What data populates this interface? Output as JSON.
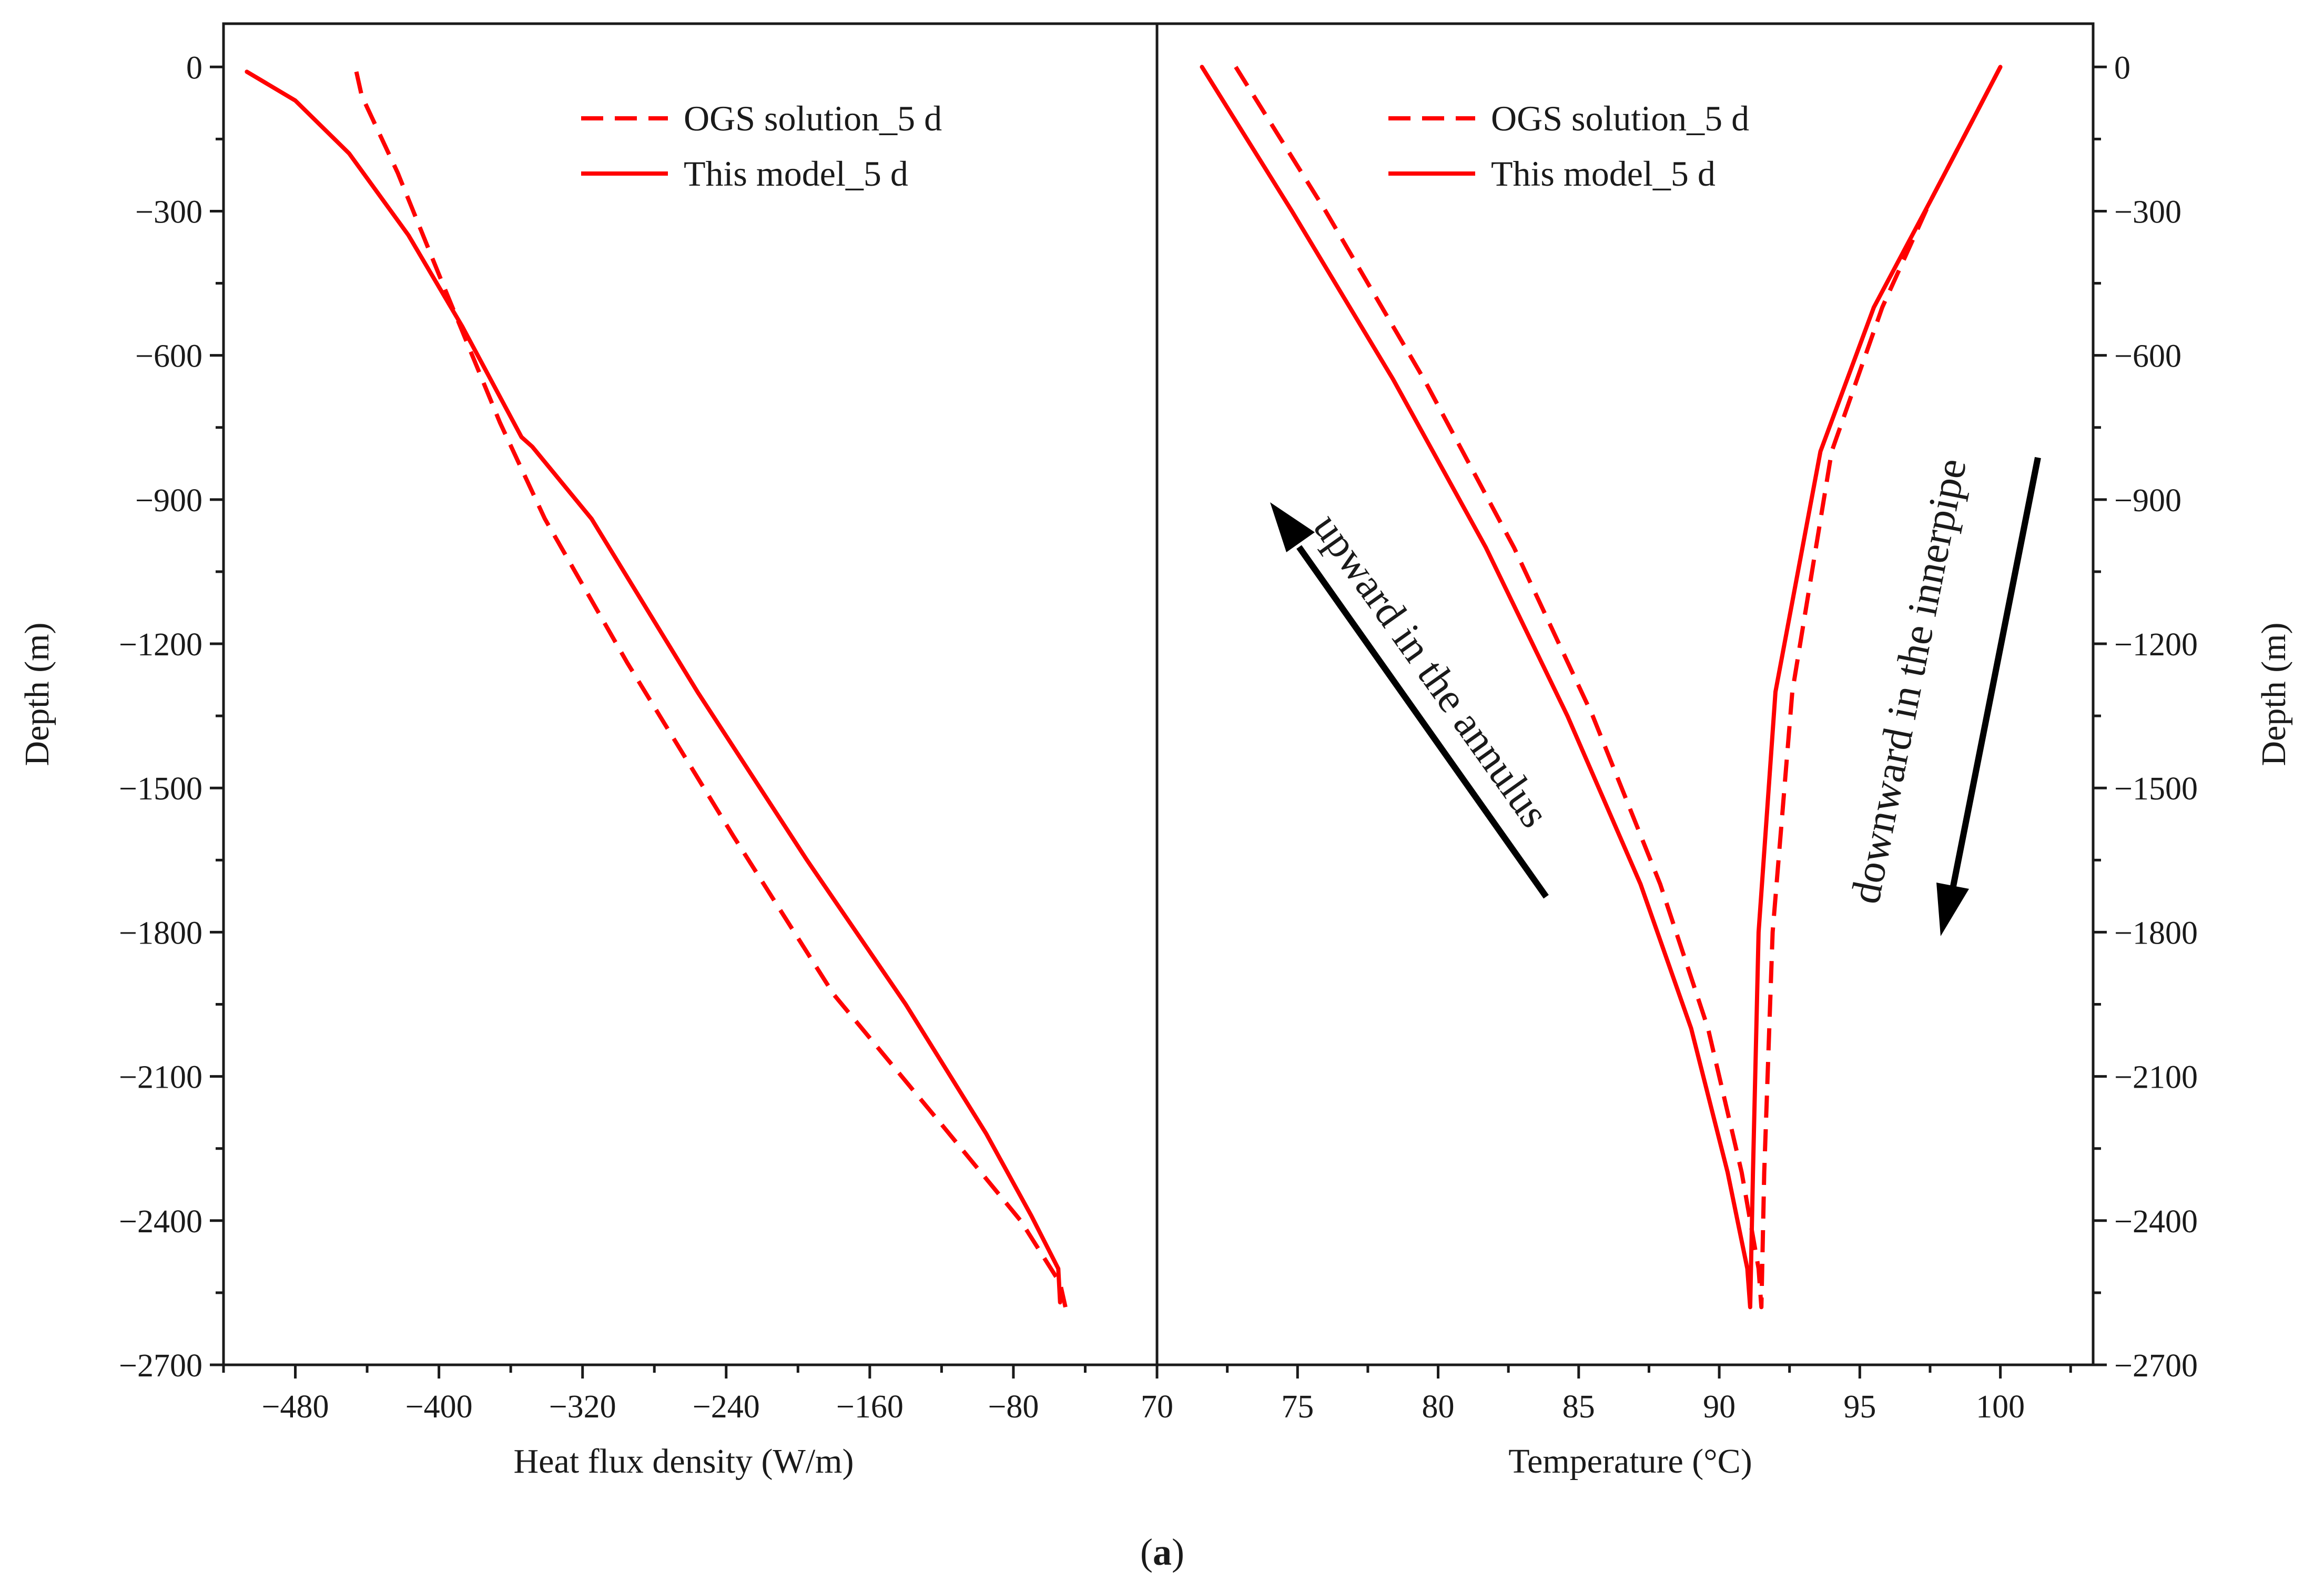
{
  "caption": {
    "open": "(",
    "letter": "a",
    "close": ")"
  },
  "colors": {
    "series": "#ff0000",
    "axis": "#1a1a1a",
    "arrow": "#000000"
  },
  "chart_data": [
    {
      "type": "line",
      "panel": "left",
      "xlabel": "Heat flux density (W/m)",
      "ylabel": "Depth (m)",
      "xlim": [
        -520,
        0
      ],
      "ylim": [
        -2700,
        90
      ],
      "xticks": [
        -480,
        -400,
        -320,
        -240,
        -160,
        -80
      ],
      "xtick_labels": [
        "−480",
        "−400",
        "−320",
        "−240",
        "−160",
        "−80"
      ],
      "yticks": [
        0,
        -300,
        -600,
        -900,
        -1200,
        -1500,
        -1800,
        -2100,
        -2400,
        -2700
      ],
      "ytick_labels": [
        "0",
        "−300",
        "−600",
        "−900",
        "−1200",
        "−1500",
        "−1800",
        "−2100",
        "−2400",
        "−2700"
      ],
      "legend_position": "top-right",
      "series": [
        {
          "name": "OGS solution_5 d",
          "style": "dashed",
          "points": [
            [
              -446,
              -10
            ],
            [
              -443,
              -60
            ],
            [
              -423,
              -220
            ],
            [
              -398,
              -450
            ],
            [
              -366,
              -740
            ],
            [
              -341,
              -940
            ],
            [
              -295,
              -1240
            ],
            [
              -236,
              -1600
            ],
            [
              -180,
              -1930
            ],
            [
              -120,
              -2200
            ],
            [
              -76,
              -2400
            ],
            [
              -54,
              -2530
            ],
            [
              -51,
              -2580
            ]
          ]
        },
        {
          "name": "This model_5 d",
          "style": "solid",
          "points": [
            [
              -507,
              -10
            ],
            [
              -480,
              -70
            ],
            [
              -450,
              -180
            ],
            [
              -417,
              -350
            ],
            [
              -387,
              -540
            ],
            [
              -354,
              -770
            ],
            [
              -348,
              -790
            ],
            [
              -315,
              -940
            ],
            [
              -256,
              -1300
            ],
            [
              -195,
              -1650
            ],
            [
              -140,
              -1950
            ],
            [
              -95,
              -2220
            ],
            [
              -70,
              -2390
            ],
            [
              -55,
              -2500
            ],
            [
              -54,
              -2570
            ]
          ]
        }
      ]
    },
    {
      "type": "line",
      "panel": "right",
      "xlabel": "Temperature (°C)",
      "ylabel": "Depth (m)",
      "xlim": [
        70,
        103.3
      ],
      "ylim": [
        -2700,
        90
      ],
      "xticks": [
        70,
        75,
        80,
        85,
        90,
        95,
        100
      ],
      "xtick_labels": [
        "70",
        "75",
        "80",
        "85",
        "90",
        "95",
        "100"
      ],
      "yticks": [
        0,
        -300,
        -600,
        -900,
        -1200,
        -1500,
        -1800,
        -2100,
        -2400,
        -2700
      ],
      "ytick_labels": [
        "0",
        "−300",
        "−600",
        "−900",
        "−1200",
        "−1500",
        "−1800",
        "−2100",
        "−2400",
        "−2700"
      ],
      "legend_position": "top-center",
      "annotations": [
        "upward in the annulus",
        "downward in the innerpipe"
      ],
      "series": [
        {
          "name": "OGS solution_5 d",
          "style": "dashed",
          "points": [
            [
              72.8,
              0
            ],
            [
              76.0,
              -300
            ],
            [
              79.5,
              -650
            ],
            [
              82.7,
              -1000
            ],
            [
              85.5,
              -1350
            ],
            [
              87.9,
              -1700
            ],
            [
              89.6,
              -2000
            ],
            [
              90.8,
              -2300
            ],
            [
              91.4,
              -2500
            ],
            [
              91.5,
              -2580
            ],
            [
              91.6,
              -2300
            ],
            [
              91.9,
              -1800
            ],
            [
              92.6,
              -1300
            ],
            [
              94.0,
              -800
            ],
            [
              95.8,
              -500
            ],
            [
              97.5,
              -280
            ],
            [
              99.2,
              -90
            ],
            [
              100,
              0
            ]
          ]
        },
        {
          "name": "This model_5 d",
          "style": "solid",
          "points": [
            [
              71.6,
              0
            ],
            [
              74.8,
              -300
            ],
            [
              78.4,
              -650
            ],
            [
              81.7,
              -1000
            ],
            [
              84.6,
              -1350
            ],
            [
              87.2,
              -1700
            ],
            [
              89.0,
              -2000
            ],
            [
              90.3,
              -2300
            ],
            [
              91.0,
              -2500
            ],
            [
              91.1,
              -2580
            ],
            [
              91.2,
              -2300
            ],
            [
              91.4,
              -1800
            ],
            [
              92.0,
              -1300
            ],
            [
              93.6,
              -800
            ],
            [
              95.5,
              -500
            ],
            [
              97.5,
              -280
            ],
            [
              99.2,
              -90
            ],
            [
              100,
              0
            ]
          ]
        }
      ]
    }
  ]
}
